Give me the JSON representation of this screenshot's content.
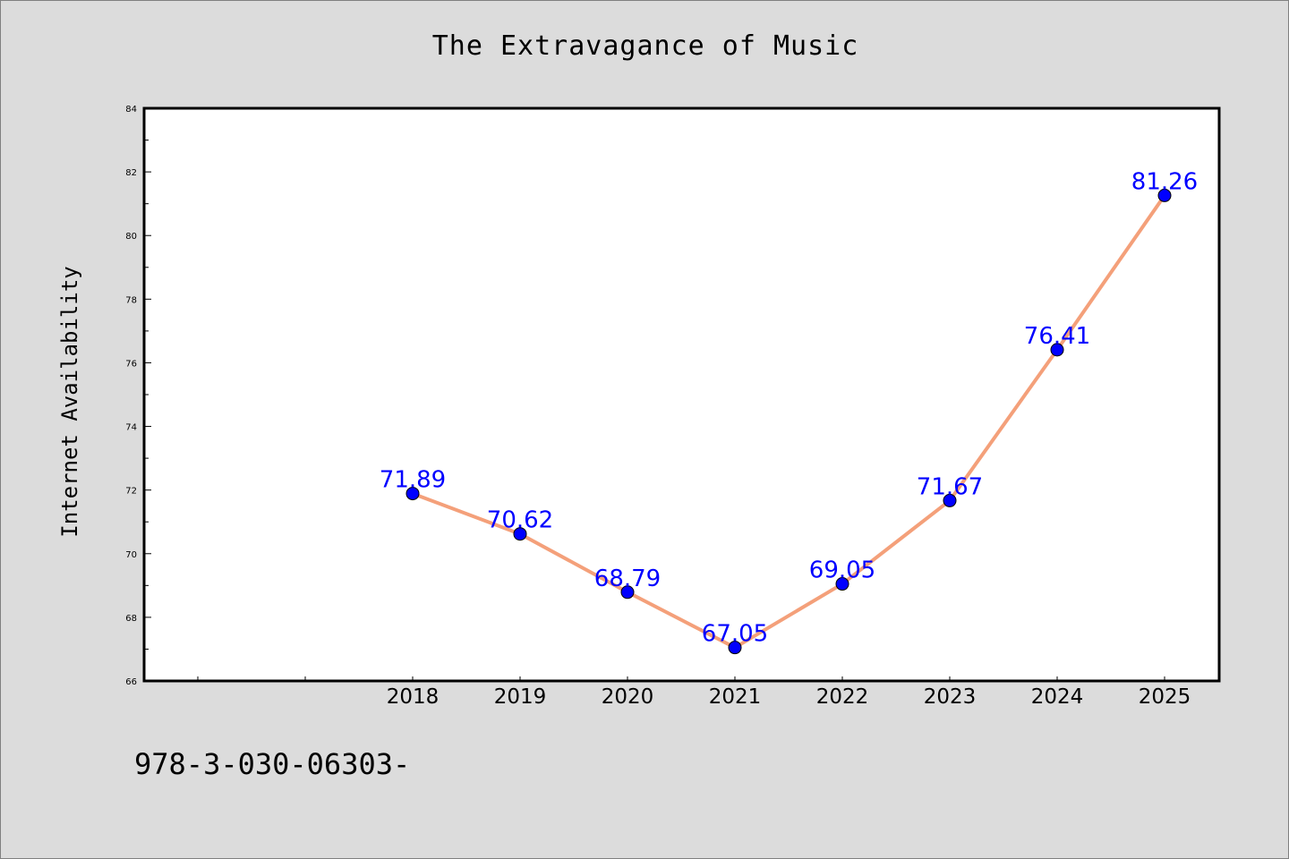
{
  "chart_data": {
    "type": "line",
    "title": "The Extravagance of Music",
    "xlabel": "",
    "ylabel": "Internet Availability",
    "categories": [
      "2018",
      "2019",
      "2020",
      "2021",
      "2022",
      "2023",
      "2024",
      "2025"
    ],
    "x_slots_before_data": 2,
    "series": [
      {
        "values": [
          71.89,
          70.62,
          68.79,
          67.05,
          69.05,
          71.67,
          76.41,
          81.26
        ],
        "data_labels": [
          "71.89",
          "70.62",
          "68.79",
          "67.05",
          "69.05",
          "71.67",
          "76.41",
          "81.26"
        ],
        "line_color": "#f4a07a",
        "marker_color": "#0000ff"
      }
    ],
    "ylim": [
      66,
      84
    ],
    "yticks": [
      66,
      68,
      70,
      72,
      74,
      76,
      78,
      80,
      82,
      84
    ],
    "ytick_labels": [
      "66",
      "68",
      "70",
      "72",
      "74",
      "76",
      "78",
      "80",
      "82",
      "84"
    ],
    "grid": false,
    "legend": "none",
    "background_color": "#dcdcdc",
    "plot_background_color": "#ffffff"
  },
  "footer": {
    "text": "978-3-030-06303-"
  }
}
